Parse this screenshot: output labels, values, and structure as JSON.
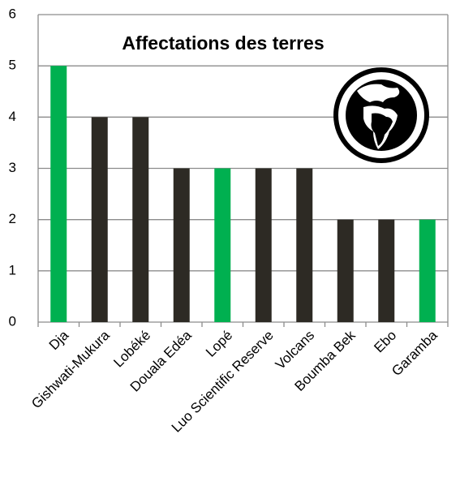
{
  "chart_data": {
    "type": "bar",
    "title": "Affectations des terres",
    "categories": [
      "Dja",
      "Gishwati-Mukura",
      "Lobéké",
      "Douala Edéa",
      "Lopé",
      "Luo Scientific Reserve",
      "Volcans",
      "Boumba Bek",
      "Ebo",
      "Garamba"
    ],
    "values": [
      5,
      4,
      4,
      3,
      3,
      3,
      3,
      2,
      2,
      2
    ],
    "colors": [
      "#00b050",
      "#2d2a24",
      "#2d2a24",
      "#2d2a24",
      "#00b050",
      "#2d2a24",
      "#2d2a24",
      "#2d2a24",
      "#2d2a24",
      "#00b050"
    ],
    "ylim": [
      0,
      6
    ],
    "yticks": [
      0,
      1,
      2,
      3,
      4,
      5,
      6
    ],
    "grid": true
  }
}
